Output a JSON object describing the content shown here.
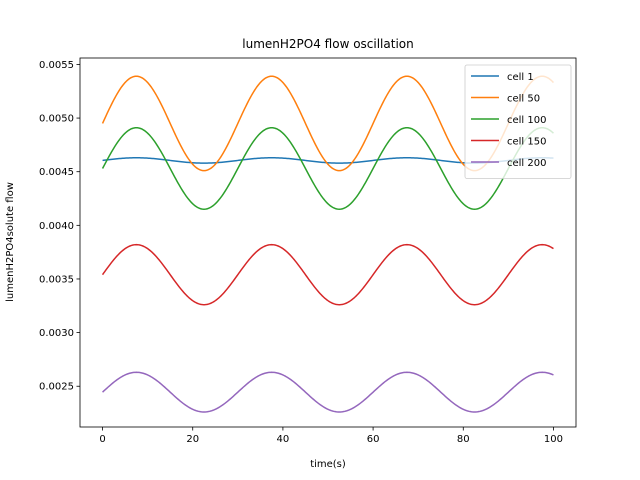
{
  "chart_data": {
    "type": "line",
    "title": "lumenH2PO4 flow oscillation",
    "xlabel": "time(s)",
    "ylabel": "lumenH2PO4solute flow",
    "xlim": [
      -5,
      105
    ],
    "ylim": [
      0.00212,
      0.00556
    ],
    "xticks": [
      0,
      20,
      40,
      60,
      80,
      100
    ],
    "xtick_labels": [
      "0",
      "20",
      "40",
      "60",
      "80",
      "100"
    ],
    "yticks": [
      0.0025,
      0.003,
      0.0035,
      0.004,
      0.0045,
      0.005,
      0.0055
    ],
    "ytick_labels": [
      "0.0025",
      "0.0030",
      "0.0035",
      "0.0040",
      "0.0045",
      "0.0050",
      "0.0055"
    ],
    "grid": false,
    "legend_position": "top-right",
    "period": 30,
    "series": [
      {
        "name": "cell 1",
        "color": "#1f77b4",
        "mean": 0.004605,
        "amplitude": 2.5e-05,
        "phase_start": 0.004615
      },
      {
        "name": "cell 50",
        "color": "#ff7f0e",
        "mean": 0.00495,
        "amplitude": 0.00044,
        "phase_start": 0.00496
      },
      {
        "name": "cell 100",
        "color": "#2ca02c",
        "mean": 0.00453,
        "amplitude": 0.00038,
        "phase_start": 0.00455
      },
      {
        "name": "cell 150",
        "color": "#d62728",
        "mean": 0.00354,
        "amplitude": 0.00028,
        "phase_start": 0.00355
      },
      {
        "name": "cell 200",
        "color": "#9467bd",
        "mean": 0.002445,
        "amplitude": 0.000185,
        "phase_start": 0.00245
      }
    ]
  }
}
